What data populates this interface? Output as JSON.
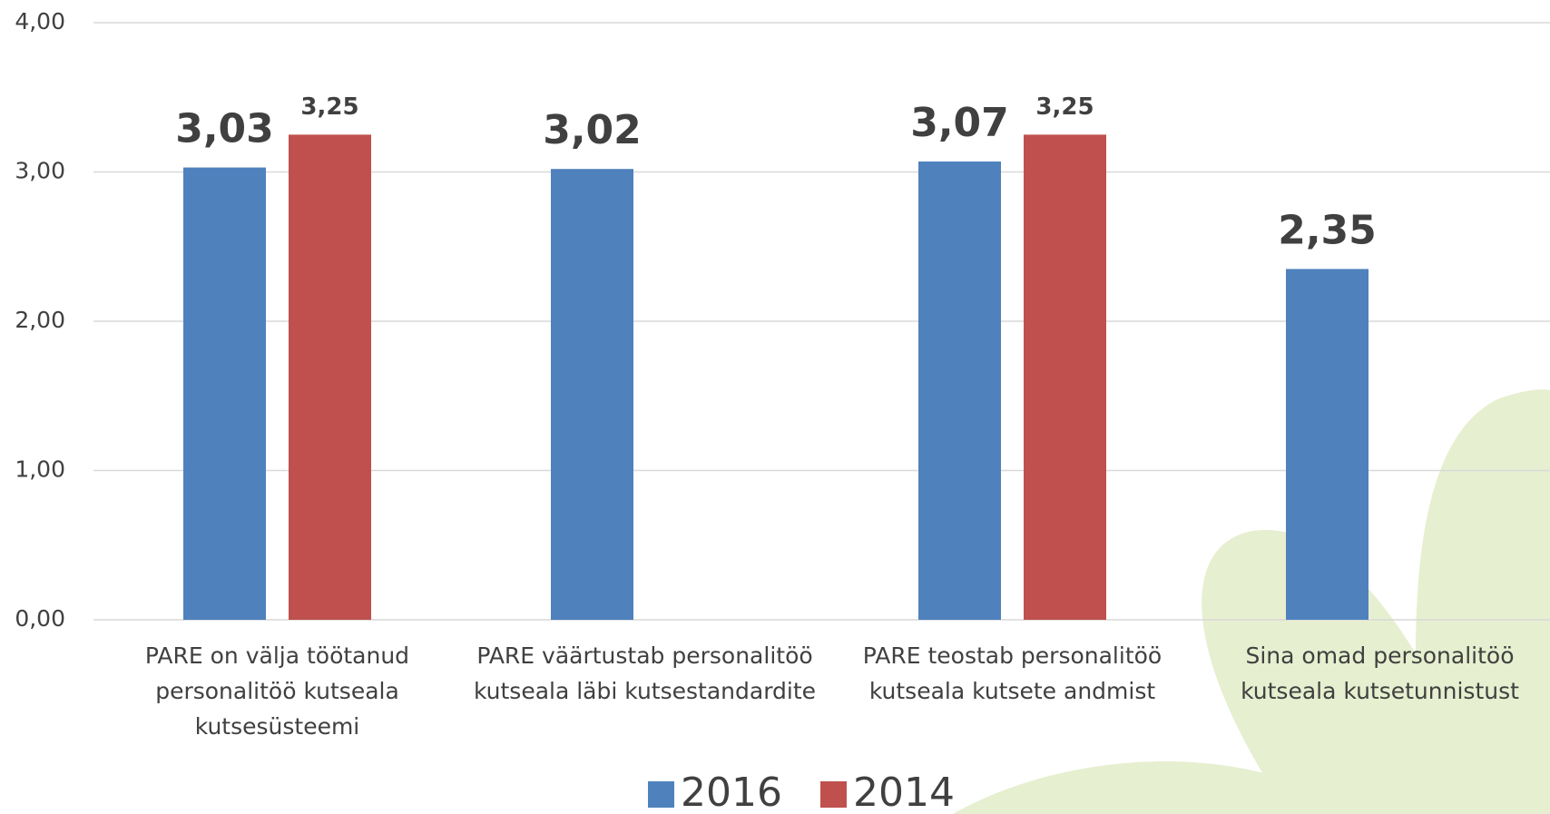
{
  "chart_data": {
    "type": "bar",
    "categories": [
      "PARE on välja töötanud personalitöö kutseala kutsesüsteemi",
      "PARE väärtustab personalitöö kutseala läbi kutsestandardite",
      "PARE teostab personalitöö kutseala kutsete andmist",
      "Sina omad personalitöö kutseala kutsetunnistust"
    ],
    "series": [
      {
        "name": "2016",
        "color": "#4f81bd",
        "values": [
          3.03,
          3.02,
          3.07,
          2.35
        ],
        "value_labels": [
          "3,03",
          "3,02",
          "3,07",
          "2,35"
        ]
      },
      {
        "name": "2014",
        "color": "#c0504d",
        "values": [
          3.25,
          null,
          3.25,
          null
        ],
        "value_labels": [
          "3,25",
          null,
          "3,25",
          null
        ]
      }
    ],
    "ylim": [
      0,
      4
    ],
    "yticks": [
      {
        "value": 0,
        "label": "0,00"
      },
      {
        "value": 1,
        "label": "1,00"
      },
      {
        "value": 2,
        "label": "2,00"
      },
      {
        "value": 3,
        "label": "3,00"
      },
      {
        "value": 4,
        "label": "4,00"
      }
    ],
    "grid": true,
    "legend": "bottom"
  }
}
